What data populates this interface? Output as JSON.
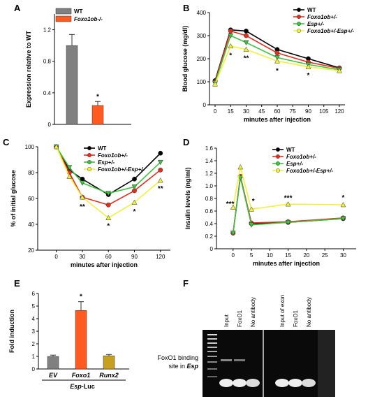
{
  "panels": {
    "A": "A",
    "B": "B",
    "C": "C",
    "D": "D",
    "E": "E",
    "F": "F"
  },
  "colors": {
    "wt": "#000000",
    "foxo1": "#e03020",
    "esp": "#40c040",
    "dko": "#f0f040",
    "grayBar": "#808080",
    "orangeBar": "#ff5a1f",
    "runxBar": "#c8a020"
  },
  "chart_data": [
    {
      "id": "A",
      "type": "bar",
      "categories": [
        "WT",
        "Foxo1ob-/-"
      ],
      "values": [
        1.0,
        0.24
      ],
      "errors": [
        0.14,
        0.05
      ],
      "ylabel": "Expression relative to WT",
      "ylim": [
        0,
        1.4
      ],
      "yticks": [
        "0",
        "0.4",
        "0.8",
        "1.2"
      ],
      "legend": [
        {
          "name": "WT",
          "color": "#808080"
        },
        {
          "name": "Foxo1ob-/-",
          "color": "#ff5a1f"
        }
      ],
      "annotations": [
        "*"
      ]
    },
    {
      "id": "B",
      "type": "line",
      "x": [
        0,
        15,
        30,
        60,
        90,
        120
      ],
      "xlabel": "minutes after injection",
      "ylabel": "Blood glucose (mg/dl)",
      "ylim": [
        0,
        400
      ],
      "yticks": [
        "0",
        "100",
        "200",
        "300",
        "400"
      ],
      "xticks": [
        "0",
        "15",
        "30",
        "45",
        "60",
        "75",
        "90",
        "105",
        "120"
      ],
      "series": [
        {
          "name": "WT",
          "values": [
            105,
            325,
            320,
            240,
            200,
            160
          ]
        },
        {
          "name": "Foxo1ob+/-",
          "values": [
            100,
            320,
            300,
            225,
            185,
            158
          ]
        },
        {
          "name": "Esp+/-",
          "values": [
            95,
            300,
            270,
            205,
            175,
            152
          ]
        },
        {
          "name": "Foxo1ob+/-Esp+/-",
          "values": [
            90,
            255,
            240,
            190,
            165,
            148
          ]
        }
      ],
      "annotations": [
        "*",
        "**",
        "*",
        "*"
      ]
    },
    {
      "id": "C",
      "type": "line",
      "x": [
        0,
        15,
        30,
        60,
        90,
        120
      ],
      "xlabel": "minutes after injection",
      "ylabel": "% of initial glucose",
      "ylim": [
        20,
        100
      ],
      "yticks": [
        "20",
        "40",
        "60",
        "80",
        "100"
      ],
      "xticks": [
        "0",
        "30",
        "60",
        "90",
        "120"
      ],
      "series": [
        {
          "name": "WT",
          "values": [
            100,
            82,
            75,
            63,
            75,
            95
          ]
        },
        {
          "name": "Foxo1ob+/-",
          "values": [
            100,
            80,
            61,
            55,
            66,
            82
          ]
        },
        {
          "name": "Esp+/-",
          "values": [
            100,
            84,
            72,
            64,
            69,
            88
          ]
        },
        {
          "name": "Foxo1ob+/-Esp+/-",
          "values": [
            100,
            77,
            61,
            45,
            57,
            74
          ]
        }
      ],
      "annotations": [
        "**",
        "*",
        "*",
        "**"
      ]
    },
    {
      "id": "D",
      "type": "line",
      "x": [
        0,
        2,
        5,
        15,
        30
      ],
      "xlabel": "minutes after injection",
      "ylabel": "Insulin levels (ng/ml)",
      "ylim": [
        0,
        1.6
      ],
      "yticks": [
        "0",
        "0.2",
        "0.4",
        "0.6",
        "0.8",
        "1.0",
        "1.2",
        "1.4",
        "1.6"
      ],
      "xticks": [
        "0",
        "5",
        "10",
        "15",
        "20",
        "25",
        "30"
      ],
      "series": [
        {
          "name": "WT",
          "values": [
            0.25,
            1.15,
            0.4,
            0.42,
            0.48
          ]
        },
        {
          "name": "Foxo1ob+/-",
          "values": [
            0.25,
            1.15,
            0.41,
            0.43,
            0.49
          ]
        },
        {
          "name": "Esp+/-",
          "values": [
            0.25,
            1.13,
            0.38,
            0.42,
            0.48
          ]
        },
        {
          "name": "Foxo1ob+/-Esp+/-",
          "values": [
            0.66,
            1.3,
            0.63,
            0.71,
            0.7
          ]
        }
      ],
      "annotations": [
        "***",
        "*",
        "***",
        "*"
      ]
    },
    {
      "id": "E",
      "type": "bar",
      "categories": [
        "EV",
        "Foxo1",
        "Runx2"
      ],
      "values": [
        1.0,
        4.65,
        1.05
      ],
      "errors": [
        0.1,
        0.7,
        0.1
      ],
      "ylabel": "Fold induction",
      "xlabel": "Esp-Luc",
      "ylim": [
        0,
        6
      ],
      "yticks": [
        "0",
        "1",
        "2",
        "3",
        "4",
        "5",
        "6"
      ],
      "annotations": [
        "*"
      ]
    }
  ],
  "gel": {
    "lanes": [
      "Input",
      "FoxO1",
      "No antibody",
      "Input of exon",
      "FoxO1",
      "No antibody"
    ],
    "side_label_1": "FoxO1 binding",
    "side_label_2": "site in",
    "side_label_3": "Esp"
  }
}
